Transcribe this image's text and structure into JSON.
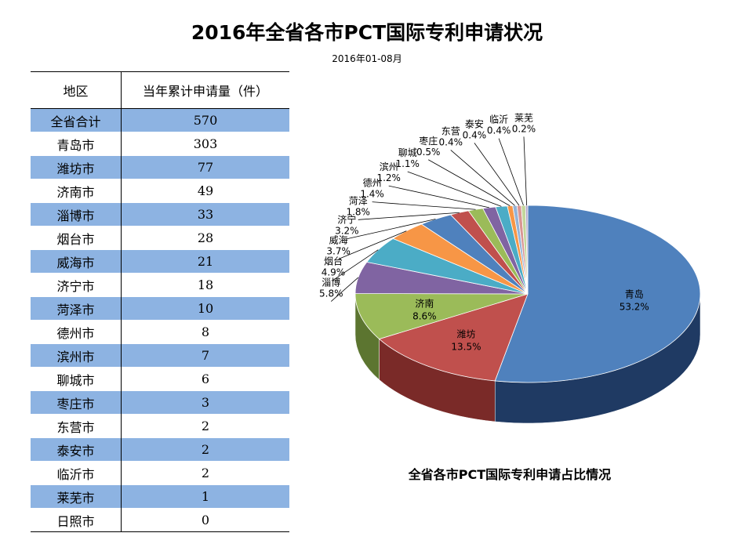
{
  "title": "2016年全省各市PCT国际专利申请状况",
  "subtitle": "2016年01-08月",
  "table": {
    "headers": [
      "地区",
      "当年累计申请量（件）"
    ],
    "rows": [
      {
        "region": "全省合计",
        "count": "570"
      },
      {
        "region": "青岛市",
        "count": "303"
      },
      {
        "region": "潍坊市",
        "count": "77"
      },
      {
        "region": "济南市",
        "count": "49"
      },
      {
        "region": "淄博市",
        "count": "33"
      },
      {
        "region": "烟台市",
        "count": "28"
      },
      {
        "region": "威海市",
        "count": "21"
      },
      {
        "region": "济宁市",
        "count": "18"
      },
      {
        "region": "菏泽市",
        "count": "10"
      },
      {
        "region": "德州市",
        "count": "8"
      },
      {
        "region": "滨州市",
        "count": "7"
      },
      {
        "region": "聊城市",
        "count": "6"
      },
      {
        "region": "枣庄市",
        "count": "3"
      },
      {
        "region": "东营市",
        "count": "2"
      },
      {
        "region": "泰安市",
        "count": "2"
      },
      {
        "region": "临沂市",
        "count": "2"
      },
      {
        "region": "莱芜市",
        "count": "1"
      },
      {
        "region": "日照市",
        "count": "0"
      }
    ]
  },
  "chart_data": {
    "type": "pie",
    "title": "全省各市PCT国际专利申请占比情况",
    "slices": [
      {
        "label": "青岛",
        "value": 53.2,
        "pct": "53.2%",
        "color": "#4f81bd",
        "dark": "#1f3a63"
      },
      {
        "label": "潍坊",
        "value": 13.5,
        "pct": "13.5%",
        "color": "#c0504d",
        "dark": "#7a2a28"
      },
      {
        "label": "济南",
        "value": 8.6,
        "pct": "8.6%",
        "color": "#9bbb59",
        "dark": "#5c7530"
      },
      {
        "label": "淄博",
        "value": 5.8,
        "pct": "5.8%",
        "color": "#8064a2",
        "dark": "#4a3764"
      },
      {
        "label": "烟台",
        "value": 4.9,
        "pct": "4.9%",
        "color": "#4bacc6",
        "dark": "#256a7c"
      },
      {
        "label": "威海",
        "value": 3.7,
        "pct": "3.7%",
        "color": "#f79646",
        "dark": "#a35a1d"
      },
      {
        "label": "济宁",
        "value": 3.2,
        "pct": "3.2%",
        "color": "#4f81bd",
        "dark": "#2a4a73"
      },
      {
        "label": "菏泽",
        "value": 1.8,
        "pct": "1.8%",
        "color": "#c0504d",
        "dark": "#7a2a28"
      },
      {
        "label": "德州",
        "value": 1.4,
        "pct": "1.4%",
        "color": "#9bbb59",
        "dark": "#5c7530"
      },
      {
        "label": "滨州",
        "value": 1.2,
        "pct": "1.2%",
        "color": "#8064a2",
        "dark": "#4a3764"
      },
      {
        "label": "聊城",
        "value": 1.1,
        "pct": "1.1%",
        "color": "#4bacc6",
        "dark": "#256a7c"
      },
      {
        "label": "枣庄",
        "value": 0.5,
        "pct": "0.5%",
        "color": "#f79646",
        "dark": "#a35a1d"
      },
      {
        "label": "东营",
        "value": 0.4,
        "pct": "0.4%",
        "color": "#95b3d7",
        "dark": "#5a7496"
      },
      {
        "label": "泰安",
        "value": 0.4,
        "pct": "0.4%",
        "color": "#d99694",
        "dark": "#8f5654"
      },
      {
        "label": "临沂",
        "value": 0.4,
        "pct": "0.4%",
        "color": "#c3d69b",
        "dark": "#7e9058"
      },
      {
        "label": "莱芜",
        "value": 0.2,
        "pct": "0.2%",
        "color": "#b2a2c7",
        "dark": "#6e6085"
      }
    ]
  }
}
